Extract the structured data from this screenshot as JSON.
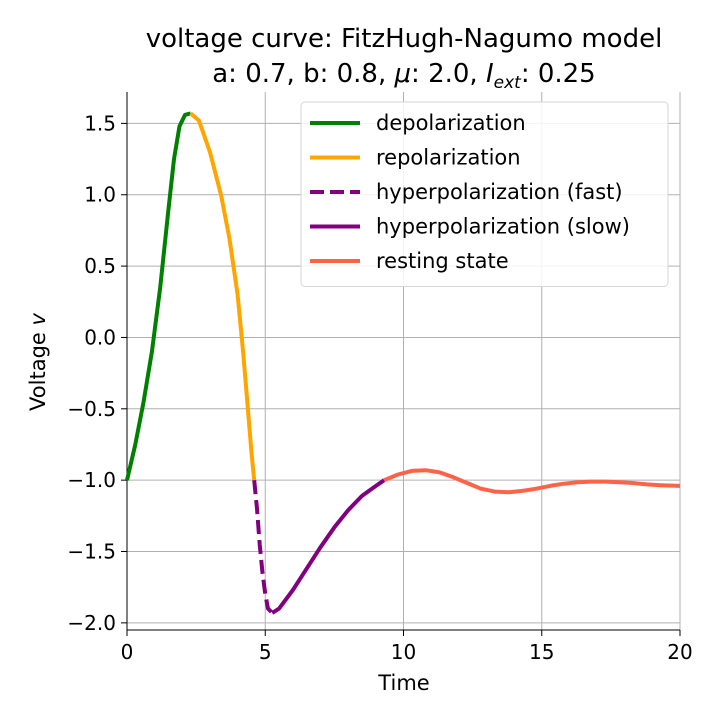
{
  "chart_data": {
    "type": "line",
    "title": {
      "line1": "voltage curve: FitzHugh-Nagumo model",
      "line2_prefix": "a: 0.7, b: 0.8, ",
      "line2_mu": "μ",
      "line2_mid": ": 2.0, ",
      "line2_I": "I",
      "line2_sub": "ext",
      "line2_end": ": 0.25"
    },
    "xlabel": "Time",
    "ylabel_prefix": "Voltage ",
    "ylabel_var": "v",
    "xlim": [
      0,
      20
    ],
    "ylim": [
      -2.05,
      1.72
    ],
    "xticks": [
      0,
      5,
      10,
      15,
      20
    ],
    "xtick_labels": [
      "0",
      "5",
      "10",
      "15",
      "20"
    ],
    "yticks": [
      1.5,
      1.0,
      0.5,
      0.0,
      -0.5,
      -1.0,
      -1.5,
      -2.0
    ],
    "ytick_labels": [
      "1.5",
      "1.0",
      "0.5",
      "0.0",
      "−0.5",
      "−1.0",
      "−1.5",
      "−2.0"
    ],
    "grid": true,
    "legend_position": "top-right",
    "series": [
      {
        "name": "depolarization",
        "color": "#008000",
        "dash": "solid",
        "x": [
          0,
          0.3,
          0.6,
          0.9,
          1.2,
          1.5,
          1.7,
          1.9,
          2.1,
          2.3
        ],
        "y": [
          -1.0,
          -0.75,
          -0.45,
          -0.1,
          0.35,
          0.9,
          1.25,
          1.48,
          1.56,
          1.57
        ]
      },
      {
        "name": "repolarization",
        "color": "#FFA500",
        "dash": "solid",
        "x": [
          2.3,
          2.6,
          3.0,
          3.4,
          3.7,
          4.0,
          4.2,
          4.35,
          4.5,
          4.6
        ],
        "y": [
          1.57,
          1.52,
          1.3,
          1.0,
          0.7,
          0.3,
          -0.1,
          -0.45,
          -0.8,
          -1.0
        ]
      },
      {
        "name": "hyperpolarization (fast)",
        "color": "#800080",
        "dash": "dashed",
        "x": [
          4.6,
          4.7,
          4.8,
          4.9,
          5.0,
          5.1,
          5.25
        ],
        "y": [
          -1.0,
          -1.2,
          -1.45,
          -1.65,
          -1.8,
          -1.9,
          -1.93
        ]
      },
      {
        "name": "hyperpolarization (slow)",
        "color": "#800080",
        "dash": "solid",
        "x": [
          5.25,
          5.5,
          6.0,
          6.5,
          7.0,
          7.5,
          8.0,
          8.5,
          9.0,
          9.3
        ],
        "y": [
          -1.93,
          -1.9,
          -1.77,
          -1.62,
          -1.47,
          -1.33,
          -1.21,
          -1.11,
          -1.04,
          -1.0
        ]
      },
      {
        "name": "resting state",
        "color": "#FF6347",
        "dash": "solid",
        "x": [
          9.3,
          9.8,
          10.3,
          10.8,
          11.3,
          11.8,
          12.3,
          12.8,
          13.3,
          13.8,
          14.3,
          14.8,
          15.3,
          15.8,
          16.3,
          16.8,
          17.3,
          17.8,
          18.3,
          18.8,
          19.3,
          20.0
        ],
        "y": [
          -1.0,
          -0.96,
          -0.935,
          -0.93,
          -0.945,
          -0.98,
          -1.02,
          -1.06,
          -1.08,
          -1.085,
          -1.075,
          -1.06,
          -1.04,
          -1.025,
          -1.015,
          -1.01,
          -1.01,
          -1.015,
          -1.02,
          -1.03,
          -1.035,
          -1.04
        ]
      }
    ]
  }
}
